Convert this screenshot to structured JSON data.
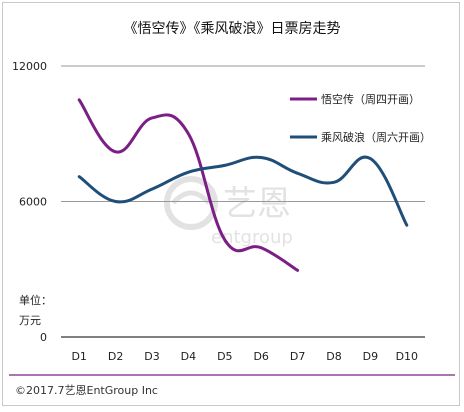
{
  "chart_data": {
    "type": "line",
    "title": "《悟空传》《乘风破浪》日票房走势",
    "unit_label_line1": "单位：",
    "unit_label_line2": "万元",
    "categories": [
      "D1",
      "D2",
      "D3",
      "D4",
      "D5",
      "D6",
      "D7",
      "D8",
      "D9",
      "D10"
    ],
    "y_ticks": [
      "12000",
      "6000",
      "0"
    ],
    "ylim": [
      0,
      12000
    ],
    "grid": "horizontal lines at 6000 and 12000",
    "legend_position": "top-right",
    "series": [
      {
        "name": "悟空传（周四开画）",
        "color": "#7b1f86",
        "values": [
          10500,
          8200,
          9700,
          9000,
          4300,
          3950,
          2950,
          null,
          null,
          null
        ]
      },
      {
        "name": "乘风破浪（周六开画）",
        "color": "#1f4e79",
        "values": [
          7100,
          6000,
          6550,
          7300,
          7600,
          7950,
          7250,
          6850,
          7900,
          4950
        ]
      }
    ]
  },
  "footer": {
    "copyright": "©2017.7艺恩EntGroup Inc"
  },
  "watermark": {
    "brand_cn": "艺恩",
    "brand_en": "entgroup"
  },
  "colors": {
    "footer_rule": "#7b1f86",
    "grid": "#999999",
    "axis": "#000000"
  }
}
